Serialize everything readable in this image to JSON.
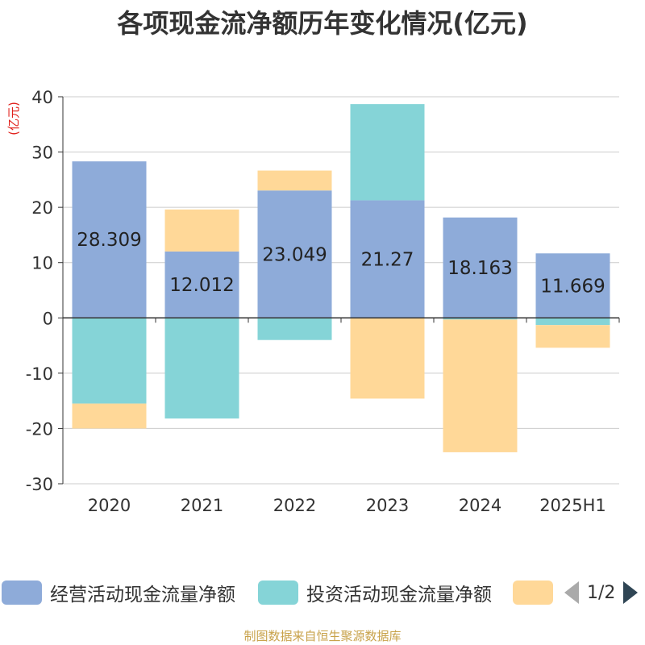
{
  "chart_data": {
    "type": "bar",
    "stacked": true,
    "title": "各项现金流净额历年变化情况(亿元)",
    "ylabel": "(亿元)",
    "categories": [
      "2020",
      "2021",
      "2022",
      "2023",
      "2024",
      "2025H1"
    ],
    "ylim": [
      -30,
      40
    ],
    "yticks": [
      40,
      30,
      20,
      10,
      0,
      -10,
      -20,
      -30
    ],
    "grid": true,
    "legend_position": "bottom",
    "series": [
      {
        "name": "经营活动现金流量净额",
        "color": "#8eabd9",
        "values": [
          28.309,
          12.012,
          23.049,
          21.27,
          18.163,
          11.669
        ],
        "show_labels": true
      },
      {
        "name": "投资活动现金流量净额",
        "color": "#85d4d7",
        "values": [
          -15.5,
          -18.2,
          -4.0,
          17.4,
          -0.3,
          -1.3
        ],
        "show_labels": false
      },
      {
        "name": "",
        "color": "#ffd898",
        "values": [
          -4.5,
          7.6,
          3.6,
          -14.6,
          -24.0,
          -4.1
        ],
        "show_labels": false
      }
    ],
    "data_labels": [
      "28.309",
      "12.012",
      "23.049",
      "21.27",
      "18.163",
      "11.669"
    ]
  },
  "legend": {
    "page_indicator": "1/2"
  },
  "source": "制图数据来自恒生聚源数据库"
}
